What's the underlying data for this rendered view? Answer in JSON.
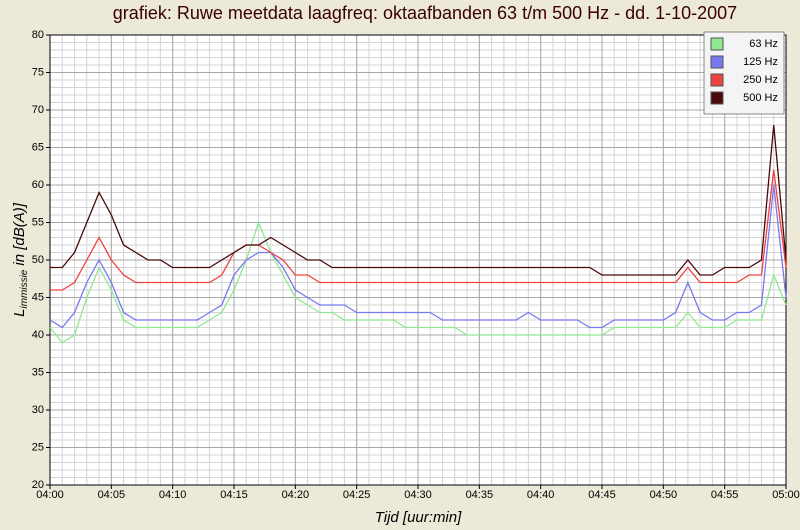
{
  "chart_data": {
    "type": "line",
    "title": "grafiek: Ruwe meetdata laagfreq: oktaafbanden 63 t/m 500 Hz - dd. 1-10-2007",
    "x_label": "Tijd [uur:min]",
    "y_label_main": "L",
    "y_label_sub": "immissie",
    "y_label_rest": "in [dB(A)]",
    "x": [
      0,
      1,
      2,
      3,
      4,
      5,
      6,
      7,
      8,
      9,
      10,
      11,
      12,
      13,
      14,
      15,
      16,
      17,
      18,
      19,
      20,
      21,
      22,
      23,
      24,
      25,
      26,
      27,
      28,
      29,
      30,
      31,
      32,
      33,
      34,
      35,
      36,
      37,
      38,
      39,
      40,
      41,
      42,
      43,
      44,
      45,
      46,
      47,
      48,
      49,
      50,
      51,
      52,
      53,
      54,
      55,
      56,
      57,
      58,
      59,
      60
    ],
    "xlim": [
      0,
      60
    ],
    "xticks": [
      {
        "value": 0,
        "label": "04:00"
      },
      {
        "value": 5,
        "label": "04:05"
      },
      {
        "value": 10,
        "label": "04:10"
      },
      {
        "value": 15,
        "label": "04:15"
      },
      {
        "value": 20,
        "label": "04:20"
      },
      {
        "value": 25,
        "label": "04:25"
      },
      {
        "value": 30,
        "label": "04:30"
      },
      {
        "value": 35,
        "label": "04:35"
      },
      {
        "value": 40,
        "label": "04:40"
      },
      {
        "value": 45,
        "label": "04:45"
      },
      {
        "value": 50,
        "label": "04:50"
      },
      {
        "value": 55,
        "label": "04:55"
      },
      {
        "value": 60,
        "label": "05:00"
      }
    ],
    "ylim": [
      20,
      80
    ],
    "yticks": [
      20,
      25,
      30,
      35,
      40,
      45,
      50,
      55,
      60,
      65,
      70,
      75,
      80
    ],
    "grid": true,
    "minor_grid": true,
    "legend": "top-right",
    "series": [
      {
        "name": "63 Hz",
        "color": "#90e890",
        "values": [
          41,
          39,
          40,
          45,
          49,
          46,
          42,
          41,
          41,
          41,
          41,
          41,
          41,
          42,
          43,
          46,
          50,
          55,
          51,
          48,
          45,
          44,
          43,
          43,
          42,
          42,
          42,
          42,
          42,
          41,
          41,
          41,
          41,
          41,
          40,
          40,
          40,
          40,
          40,
          40,
          40,
          40,
          40,
          40,
          40,
          40,
          41,
          41,
          41,
          41,
          41,
          41,
          43,
          41,
          41,
          41,
          42,
          42,
          42,
          48,
          44
        ]
      },
      {
        "name": "125 Hz",
        "color": "#7878f0",
        "values": [
          42,
          41,
          43,
          47,
          50,
          47,
          43,
          42,
          42,
          42,
          42,
          42,
          42,
          43,
          44,
          48,
          50,
          51,
          51,
          49,
          46,
          45,
          44,
          44,
          44,
          43,
          43,
          43,
          43,
          43,
          43,
          43,
          42,
          42,
          42,
          42,
          42,
          42,
          42,
          43,
          42,
          42,
          42,
          42,
          41,
          41,
          42,
          42,
          42,
          42,
          42,
          43,
          47,
          43,
          42,
          42,
          43,
          43,
          44,
          60,
          45
        ]
      },
      {
        "name": "250 Hz",
        "color": "#f04040",
        "values": [
          46,
          46,
          47,
          50,
          53,
          50,
          48,
          47,
          47,
          47,
          47,
          47,
          47,
          47,
          48,
          51,
          52,
          52,
          51,
          50,
          48,
          48,
          47,
          47,
          47,
          47,
          47,
          47,
          47,
          47,
          47,
          47,
          47,
          47,
          47,
          47,
          47,
          47,
          47,
          47,
          47,
          47,
          47,
          47,
          47,
          47,
          47,
          47,
          47,
          47,
          47,
          47,
          49,
          47,
          47,
          47,
          47,
          48,
          48,
          62,
          49
        ]
      },
      {
        "name": "500 Hz",
        "color": "#4a0808",
        "values": [
          49,
          49,
          51,
          55,
          59,
          56,
          52,
          51,
          50,
          50,
          49,
          49,
          49,
          49,
          50,
          51,
          52,
          52,
          53,
          52,
          51,
          50,
          50,
          49,
          49,
          49,
          49,
          49,
          49,
          49,
          49,
          49,
          49,
          49,
          49,
          49,
          49,
          49,
          49,
          49,
          49,
          49,
          49,
          49,
          49,
          48,
          48,
          48,
          48,
          48,
          48,
          48,
          50,
          48,
          48,
          49,
          49,
          49,
          50,
          68,
          50
        ]
      }
    ]
  }
}
